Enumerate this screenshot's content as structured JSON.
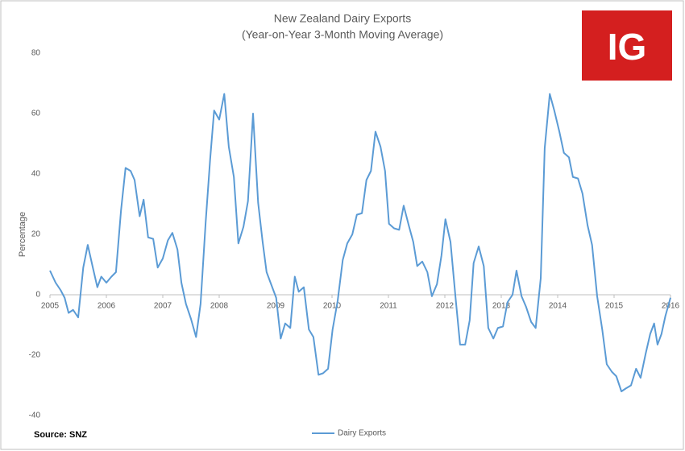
{
  "chart_data": {
    "type": "line",
    "title": "New Zealand Dairy Exports",
    "subtitle": "(Year-on-Year 3-Month Moving Average)",
    "y_label": "Percentage",
    "source": "Source: SNZ",
    "logo": "IG",
    "legend": "bottom",
    "grid": false,
    "xlim": [
      2005,
      2016
    ],
    "xticks": [
      2005,
      2006,
      2007,
      2008,
      2009,
      2010,
      2011,
      2012,
      2013,
      2014,
      2015,
      2016
    ],
    "ylim": [
      -40,
      80
    ],
    "yticks": [
      -40,
      -20,
      0,
      20,
      40,
      60,
      80
    ],
    "x": [
      2005.0,
      2005.1,
      2005.19,
      2005.26,
      2005.33,
      2005.41,
      2005.5,
      2005.59,
      2005.67,
      2005.76,
      2005.84,
      2005.91,
      2006.0,
      2006.09,
      2006.17,
      2006.26,
      2006.34,
      2006.43,
      2006.5,
      2006.59,
      2006.66,
      2006.74,
      2006.83,
      2006.91,
      2007.0,
      2007.09,
      2007.17,
      2007.26,
      2007.33,
      2007.41,
      2007.5,
      2007.59,
      2007.67,
      2007.76,
      2007.84,
      2007.91,
      2008.0,
      2008.09,
      2008.17,
      2008.26,
      2008.34,
      2008.43,
      2008.51,
      2008.6,
      2008.69,
      2008.77,
      2008.84,
      2008.93,
      2009.01,
      2009.09,
      2009.17,
      2009.26,
      2009.34,
      2009.41,
      2009.5,
      2009.59,
      2009.67,
      2009.76,
      2009.84,
      2009.93,
      2010.01,
      2010.1,
      2010.19,
      2010.27,
      2010.36,
      2010.44,
      2010.53,
      2010.61,
      2010.69,
      2010.77,
      2010.86,
      2010.94,
      2011.01,
      2011.1,
      2011.19,
      2011.27,
      2011.36,
      2011.44,
      2011.51,
      2011.6,
      2011.69,
      2011.77,
      2011.86,
      2011.94,
      2012.01,
      2012.1,
      2012.19,
      2012.27,
      2012.36,
      2012.44,
      2012.51,
      2012.6,
      2012.69,
      2012.77,
      2012.86,
      2012.94,
      2013.03,
      2013.11,
      2013.2,
      2013.27,
      2013.36,
      2013.44,
      2013.53,
      2013.61,
      2013.7,
      2013.77,
      2013.86,
      2013.94,
      2014.03,
      2014.11,
      2014.2,
      2014.27,
      2014.36,
      2014.44,
      2014.53,
      2014.61,
      2014.7,
      2014.79,
      2014.87,
      2014.96,
      2015.04,
      2015.13,
      2015.21,
      2015.3,
      2015.39,
      2015.47,
      2015.56,
      2015.64,
      2015.71,
      2015.77,
      2015.84,
      2015.91,
      2016.0
    ],
    "series": [
      {
        "name": "Dairy Exports",
        "color": "#5b9bd5",
        "values": [
          8,
          4,
          1.5,
          -1,
          -6,
          -5,
          -7.5,
          9,
          16.5,
          9,
          2.5,
          6,
          4,
          6,
          7.5,
          28,
          42,
          41,
          38,
          26,
          31.5,
          19,
          18.5,
          9,
          12,
          18,
          20.5,
          15,
          4,
          -3,
          -8,
          -14,
          -3,
          24,
          45,
          61,
          58,
          66.5,
          49,
          39,
          17,
          22.5,
          31,
          60,
          30.5,
          17.5,
          7.5,
          3,
          -1,
          -14.5,
          -9.5,
          -11,
          6,
          1,
          2.5,
          -11.5,
          -14,
          -26.5,
          -26,
          -24.5,
          -11.5,
          -2,
          11.5,
          17,
          20,
          26.5,
          27,
          38,
          41,
          54,
          49,
          41,
          23.5,
          22,
          21.5,
          29.5,
          23,
          17.5,
          9.5,
          11,
          7.5,
          -0.5,
          3.5,
          13,
          25,
          17.5,
          -1,
          -16.5,
          -16.5,
          -8.5,
          10.5,
          16,
          9.5,
          -11,
          -14.5,
          -11,
          -10.5,
          -2.5,
          0,
          8,
          -0.5,
          -4,
          -9,
          -11,
          5.5,
          48.5,
          66.5,
          61,
          54,
          47,
          45.5,
          39,
          38.5,
          33.5,
          23,
          16.5,
          -0.5,
          -11.5,
          -23,
          -25.5,
          -27,
          -32,
          -31,
          -30,
          -24.5,
          -27.5,
          -19.5,
          -13,
          -9.5,
          -16.5,
          -13,
          -7,
          -1
        ]
      }
    ]
  }
}
